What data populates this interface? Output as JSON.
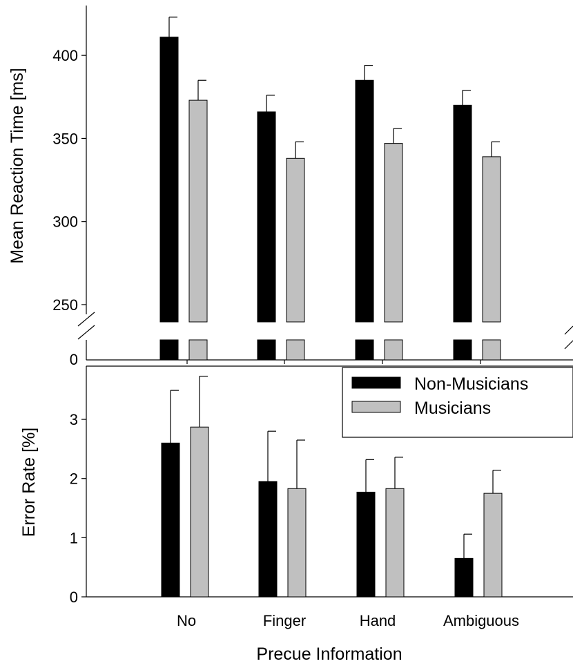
{
  "chart_data": [
    {
      "type": "bar",
      "ylabel": "Mean Reaction Time  [ms]",
      "ylim": [
        240,
        430
      ],
      "y_ticks": [
        "250",
        "300",
        "350",
        "400"
      ],
      "y_break_label": "0",
      "y_axis_break": true,
      "categories": [
        "No",
        "Finger",
        "Hand",
        "Ambiguous"
      ],
      "series": [
        {
          "name": "Non-Musicians",
          "color": "#000000",
          "values": [
            411,
            366,
            385,
            370
          ],
          "errors": [
            12,
            10,
            9,
            9
          ]
        },
        {
          "name": "Musicians",
          "color": "#c0c0c0",
          "values": [
            373,
            338,
            347,
            339
          ],
          "errors": [
            12,
            10,
            9,
            9
          ]
        }
      ]
    },
    {
      "type": "bar",
      "ylabel": "Error Rate [%]",
      "xlabel": "Precue Information",
      "ylim": [
        0,
        3.9
      ],
      "y_ticks": [
        "0",
        "1",
        "2",
        "3"
      ],
      "categories": [
        "No",
        "Finger",
        "Hand",
        "Ambiguous"
      ],
      "legend_position": "top-right",
      "series": [
        {
          "name": "Non-Musicians",
          "color": "#000000",
          "values": [
            2.6,
            1.95,
            1.77,
            0.65
          ],
          "errors": [
            0.89,
            0.85,
            0.55,
            0.41
          ]
        },
        {
          "name": "Musicians",
          "color": "#c0c0c0",
          "values": [
            2.87,
            1.83,
            1.83,
            1.75
          ],
          "errors": [
            0.86,
            0.82,
            0.53,
            0.39
          ]
        }
      ]
    }
  ]
}
